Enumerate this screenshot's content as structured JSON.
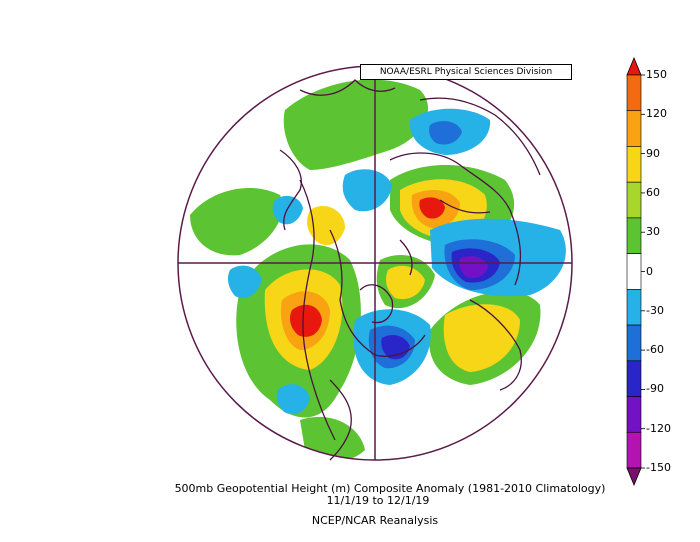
{
  "credit": "NOAA/ESRL Physical Sciences Division",
  "caption": {
    "line1": "500mb Geopotential Height (m) Composite Anomaly (1981-2010 Climatology)",
    "line2": "11/1/19  to 12/1/19",
    "line3": "NCEP/NCAR Reanalysis"
  },
  "colorbar": {
    "levels": [
      "150",
      "120",
      "90",
      "60",
      "30",
      "0",
      "-30",
      "-60",
      "-90",
      "-120",
      "-150"
    ],
    "colors": [
      "#e8180f",
      "#f26b10",
      "#f9a312",
      "#f7d618",
      "#a8d62a",
      "#5cc432",
      "#ffffff",
      "#26b2e6",
      "#1e6fd8",
      "#2a25c8",
      "#7212c4",
      "#b314b0",
      "#7a0f6e"
    ]
  },
  "map": {
    "projection": "north-polar-stereographic",
    "anomaly_palette": {
      "strong_positive": "#e8180f",
      "positive": "#f7d618",
      "weak_positive": "#5cc432",
      "weak_negative": "#26b2e6",
      "negative": "#2a25c8",
      "strong_negative": "#7212c4"
    }
  }
}
